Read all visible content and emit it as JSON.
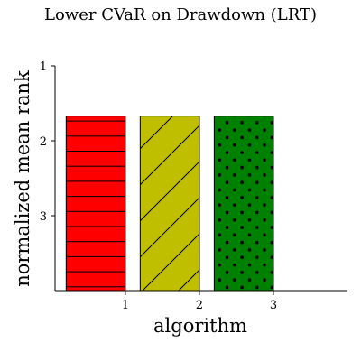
{
  "chart_data": {
    "type": "bar",
    "title": "Lower CVaR on Drawdown (LRT)",
    "xlabel": "algorithm",
    "ylabel": "normalized mean rank",
    "x_ticks": [
      1,
      2,
      3
    ],
    "y_ticks": [
      1,
      2,
      3
    ],
    "xlim": [
      0.05,
      4.0
    ],
    "ylim": [
      4.0,
      1.0
    ],
    "y_inverted": true,
    "bar_width": 0.8,
    "bar_bottom": 4.0,
    "grid": false,
    "series": [
      {
        "x": 0.6,
        "value": 1.67,
        "color": "#ff0000",
        "hatch": "horizontal"
      },
      {
        "x": 1.6,
        "value": 1.67,
        "color": "#bfbf00",
        "hatch": "diagonal"
      },
      {
        "x": 2.6,
        "value": 1.67,
        "color": "#008000",
        "hatch": "dots"
      }
    ]
  }
}
